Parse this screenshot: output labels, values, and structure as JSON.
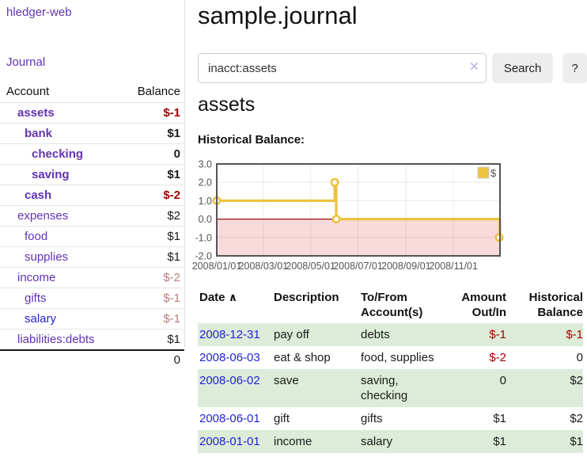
{
  "sidebar": {
    "brand": "hledger-web",
    "nav_journal": "Journal",
    "table": {
      "col_account": "Account",
      "col_balance": "Balance",
      "rows": [
        {
          "name": "assets",
          "depth": 1,
          "bold": true,
          "balance": "$-1",
          "style": "neg"
        },
        {
          "name": "bank",
          "depth": 2,
          "bold": true,
          "balance": "$1",
          "style": "pos"
        },
        {
          "name": "checking",
          "depth": 3,
          "bold": true,
          "balance": "0",
          "style": "pos"
        },
        {
          "name": "saving",
          "depth": 3,
          "bold": true,
          "balance": "$1",
          "style": "pos"
        },
        {
          "name": "cash",
          "depth": 2,
          "bold": true,
          "balance": "$-2",
          "style": "neg"
        },
        {
          "name": "expenses",
          "depth": 1,
          "bold": false,
          "balance": "$2",
          "style": "pos"
        },
        {
          "name": "food",
          "depth": 2,
          "bold": false,
          "balance": "$1",
          "style": "pos"
        },
        {
          "name": "supplies",
          "depth": 2,
          "bold": false,
          "balance": "$1",
          "style": "pos"
        },
        {
          "name": "income",
          "depth": 1,
          "bold": false,
          "balance": "$-2",
          "style": "negl"
        },
        {
          "name": "gifts",
          "depth": 2,
          "bold": false,
          "balance": "$-1",
          "style": "negl"
        },
        {
          "name": "salary",
          "depth": 2,
          "bold": false,
          "link": "blue",
          "balance": "$-1",
          "style": "negl"
        },
        {
          "name": "liabilities:debts",
          "depth": 1,
          "bold": false,
          "balance": "$1",
          "style": "pos"
        }
      ],
      "total": "0"
    }
  },
  "main": {
    "title": "sample.journal",
    "search": {
      "value": "inacct:assets",
      "clear_icon": "×",
      "button": "Search",
      "help_button": "?"
    },
    "account_heading": "assets",
    "chart_heading": "Historical Balance:",
    "register": {
      "headers": {
        "date": "Date",
        "sort_icon": "∧",
        "description": "Description",
        "tofrom": "To/From Account(s)",
        "amount": "Amount Out/In",
        "balance": "Historical Balance"
      },
      "rows": [
        {
          "date": "2008-12-31",
          "description": "pay off",
          "accounts": "debts",
          "amount": "$-1",
          "amount_neg": true,
          "balance": "$-1",
          "balance_neg": true
        },
        {
          "date": "2008-06-03",
          "description": "eat & shop",
          "accounts": "food, supplies",
          "amount": "$-2",
          "amount_neg": true,
          "balance": "0",
          "balance_neg": false
        },
        {
          "date": "2008-06-02",
          "description": "save",
          "accounts": "saving, checking",
          "amount": "0",
          "amount_neg": false,
          "balance": "$2",
          "balance_neg": false
        },
        {
          "date": "2008-06-01",
          "description": "gift",
          "accounts": "gifts",
          "amount": "$1",
          "amount_neg": false,
          "balance": "$2",
          "balance_neg": false
        },
        {
          "date": "2008-01-01",
          "description": "income",
          "accounts": "salary",
          "amount": "$1",
          "amount_neg": false,
          "balance": "$1",
          "balance_neg": false
        }
      ]
    }
  },
  "colors": {
    "link_purple": "#6233b4",
    "link_blue": "#2323dd",
    "negative_strong": "#a30000",
    "negative_muted": "#bd7d7d",
    "row_stripe_green": "#dcecd8",
    "series_gold": "#edc240",
    "chart_border": "#545454",
    "negative_region_pink": "#f9dada",
    "zero_line_red": "#991111"
  },
  "chart_data": {
    "type": "line",
    "style": "step-after",
    "title": "Historical Balance:",
    "legend": {
      "position": "top-right",
      "entries": [
        "$"
      ]
    },
    "series": [
      {
        "name": "$",
        "color": "#edc240",
        "points": [
          [
            "2008-01-01",
            1
          ],
          [
            "2008-06-01",
            2
          ],
          [
            "2008-06-03",
            0
          ],
          [
            "2008-12-31",
            -1
          ]
        ]
      }
    ],
    "ylim": [
      -2,
      3
    ],
    "yticks": [
      3.0,
      2.0,
      1.0,
      0.0,
      -1.0,
      -2.0
    ],
    "xrange": [
      "2008-01-01",
      "2008-12-31"
    ],
    "xtick_dates": [
      "2008-01-01",
      "2008-03-01",
      "2008-05-01",
      "2008-07-01",
      "2008-09-01",
      "2008-11-01"
    ],
    "xtick_labels": [
      "2008/01/01",
      "2008/03/01",
      "2008/05/01",
      "2008/07/01",
      "2008/09/01",
      "2008/11/01"
    ],
    "grid": true,
    "negative_region_color": "#f9dada",
    "zero_line_color": "#991111"
  }
}
